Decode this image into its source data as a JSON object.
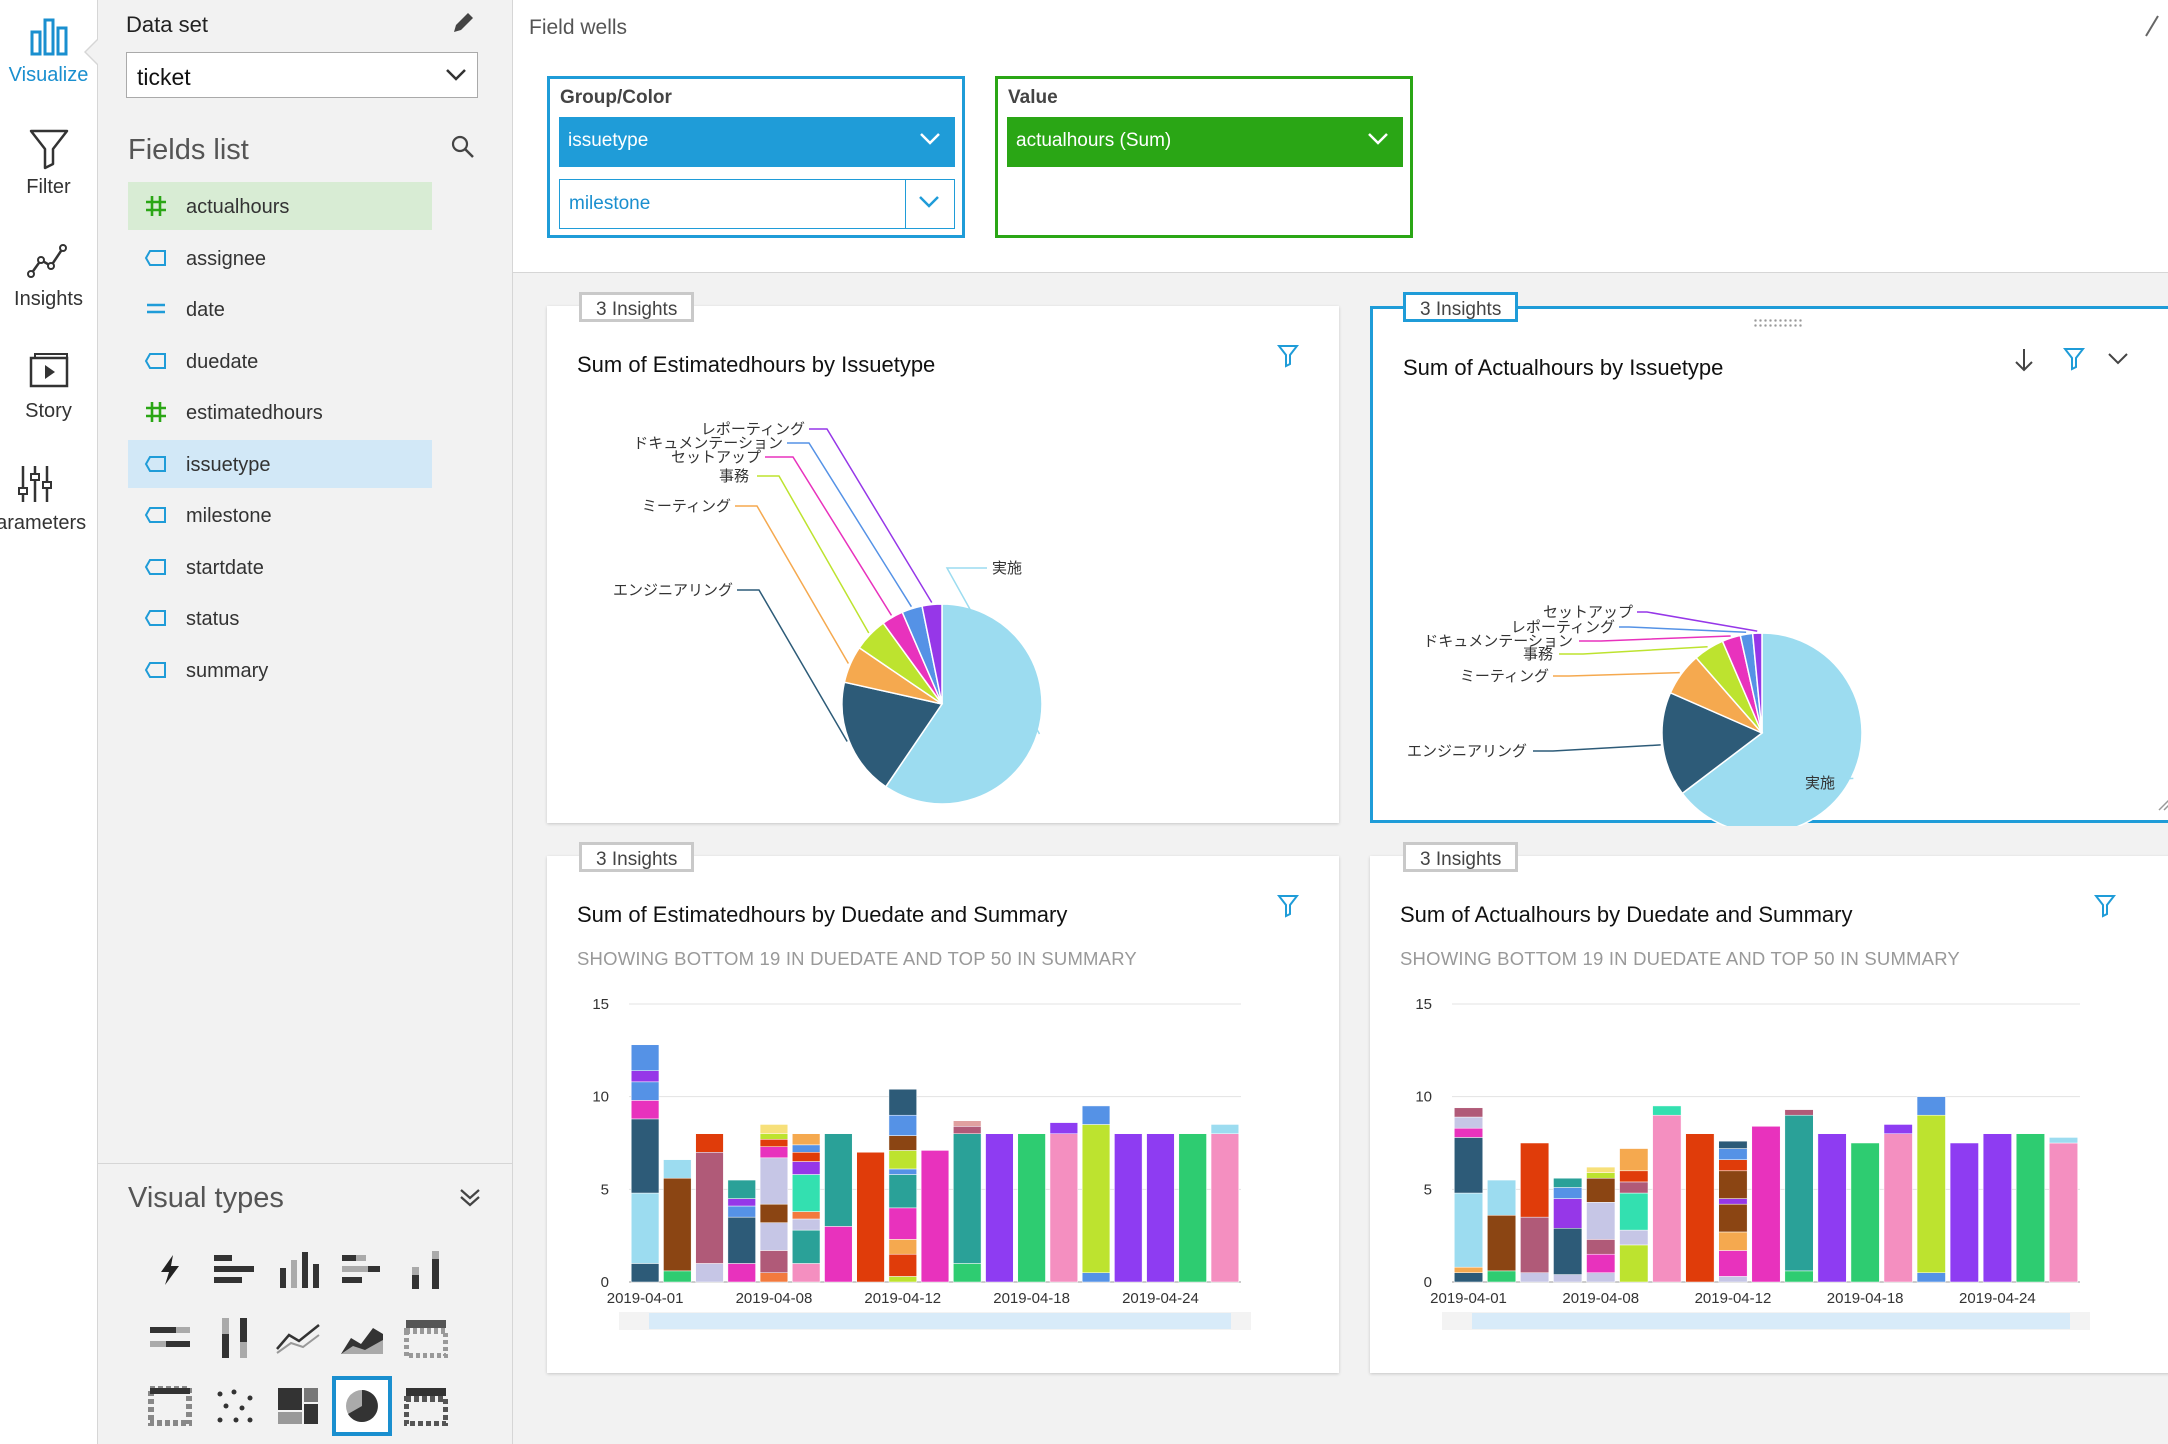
{
  "rail": {
    "items": [
      {
        "label": "Visualize",
        "icon": "bar-chart-icon"
      },
      {
        "label": "Filter",
        "icon": "funnel-icon"
      },
      {
        "label": "Insights",
        "icon": "insights-line-icon"
      },
      {
        "label": "Story",
        "icon": "story-play-icon"
      },
      {
        "label": "Parameters",
        "icon": "sliders-icon"
      }
    ]
  },
  "dataset": {
    "label": "Data set",
    "selected": "ticket"
  },
  "fields_list": {
    "title": "Fields list",
    "fields": [
      {
        "name": "actualhours",
        "type": "measure"
      },
      {
        "name": "assignee",
        "type": "dimension"
      },
      {
        "name": "date",
        "type": "date"
      },
      {
        "name": "duedate",
        "type": "dimension"
      },
      {
        "name": "estimatedhours",
        "type": "measure"
      },
      {
        "name": "issuetype",
        "type": "dimension"
      },
      {
        "name": "milestone",
        "type": "dimension"
      },
      {
        "name": "startdate",
        "type": "dimension"
      },
      {
        "name": "status",
        "type": "dimension"
      },
      {
        "name": "summary",
        "type": "dimension"
      }
    ]
  },
  "visual_types": {
    "title": "Visual types"
  },
  "field_wells": {
    "title": "Field wells",
    "group_color": {
      "label": "Group/Color",
      "fields": [
        "issuetype",
        "milestone"
      ]
    },
    "value": {
      "label": "Value",
      "fields": [
        "actualhours (Sum)"
      ]
    }
  },
  "colors": {
    "accent_blue": "#1f9cd8",
    "accent_green": "#2aa615"
  },
  "cards": [
    {
      "insights": "3 Insights",
      "title": "Sum of Estimatedhours by Issuetype"
    },
    {
      "insights": "3 Insights",
      "title": "Sum of Actualhours by Issuetype"
    },
    {
      "insights": "3 Insights",
      "title": "Sum of Estimatedhours by Duedate and Summary",
      "subtitle": "SHOWING BOTTOM 19 IN DUEDATE AND TOP 50 IN SUMMARY"
    },
    {
      "insights": "3 Insights",
      "title": "Sum of Actualhours by Duedate and Summary",
      "subtitle": "SHOWING BOTTOM 19 IN DUEDATE AND TOP 50 IN SUMMARY"
    }
  ],
  "chart_data": [
    {
      "type": "pie",
      "title": "Sum of Estimatedhours by Issuetype",
      "slices": [
        {
          "label": "実施",
          "value": 59.5,
          "color": "#9cdcf0"
        },
        {
          "label": "エンジニアリング",
          "value": 19.0,
          "color": "#2d5b78"
        },
        {
          "label": "ミーティング",
          "value": 6.0,
          "color": "#f5a94f"
        },
        {
          "label": "事務",
          "value": 5.5,
          "color": "#bde32f"
        },
        {
          "label": "セットアップ",
          "value": 3.5,
          "color": "#e832bd"
        },
        {
          "label": "ドキュメンテーション",
          "value": 3.3,
          "color": "#5592e6"
        },
        {
          "label": "レポーティング",
          "value": 3.2,
          "color": "#9637e8"
        }
      ]
    },
    {
      "type": "pie",
      "title": "Sum of Actualhours by Issuetype",
      "slices": [
        {
          "label": "実施",
          "value": 65.0,
          "color": "#9cdcf0"
        },
        {
          "label": "エンジニアリング",
          "value": 17.0,
          "color": "#2d5b78"
        },
        {
          "label": "ミーティング",
          "value": 7.0,
          "color": "#f5a94f"
        },
        {
          "label": "事務",
          "value": 5.0,
          "color": "#bde32f"
        },
        {
          "label": "ドキュメンテーション",
          "value": 3.0,
          "color": "#e832bd"
        },
        {
          "label": "レポーティング",
          "value": 2.0,
          "color": "#5592e6"
        },
        {
          "label": "セットアップ",
          "value": 1.5,
          "color": "#9637e8"
        }
      ]
    },
    {
      "type": "bar",
      "stacked": true,
      "title": "Sum of Estimatedhours by Duedate and Summary",
      "subtitle": "SHOWING BOTTOM 19 IN DUEDATE AND TOP 50 IN SUMMARY",
      "ylim": [
        0,
        15
      ],
      "yticks": [
        0,
        5,
        10,
        15
      ],
      "xtick_labels": [
        {
          "label": "2019-04-01",
          "index": 0
        },
        {
          "label": "2019-04-08",
          "index": 4
        },
        {
          "label": "2019-04-12",
          "index": 8
        },
        {
          "label": "2019-04-18",
          "index": 12
        },
        {
          "label": "2019-04-24",
          "index": 16
        }
      ],
      "stacks": [
        [
          [
            1,
            "#2d5b78"
          ],
          [
            3.8,
            "#9cdcf0"
          ],
          [
            4,
            "#2d5b78"
          ],
          [
            1,
            "#e832bd"
          ],
          [
            1,
            "#5592e6"
          ],
          [
            0.6,
            "#9637e8"
          ],
          [
            1.4,
            "#5592e6"
          ]
        ],
        [
          [
            0.6,
            "#2ecc71"
          ],
          [
            5,
            "#8b4513"
          ],
          [
            1,
            "#9cdcf0"
          ]
        ],
        [
          [
            1,
            "#c6c6e6"
          ],
          [
            6,
            "#b05a78"
          ],
          [
            1,
            "#e03c0a"
          ]
        ],
        [
          [
            1,
            "#e832bd"
          ],
          [
            2.5,
            "#2d5b78"
          ],
          [
            0.6,
            "#5592e6"
          ],
          [
            0.4,
            "#9637e8"
          ],
          [
            1,
            "#2aa198"
          ]
        ],
        [
          [
            0.5,
            "#f27a3e"
          ],
          [
            1.2,
            "#b05a78"
          ],
          [
            1.5,
            "#c6c6e6"
          ],
          [
            1,
            "#8b4513"
          ],
          [
            2.5,
            "#c6c6e6"
          ],
          [
            0.6,
            "#e832bd"
          ],
          [
            0.4,
            "#e03c0a"
          ],
          [
            0.3,
            "#bde32f"
          ],
          [
            0.5,
            "#f7e07a"
          ]
        ],
        [
          [
            1,
            "#f48fc0"
          ],
          [
            1.8,
            "#2aa198"
          ],
          [
            0.6,
            "#c6c6e6"
          ],
          [
            0.4,
            "#f27a3e"
          ],
          [
            2,
            "#33e0b0"
          ],
          [
            0.7,
            "#9637e8"
          ],
          [
            0.5,
            "#e03c0a"
          ],
          [
            0.4,
            "#5592e6"
          ],
          [
            0.6,
            "#f5a94f"
          ]
        ],
        [
          [
            3,
            "#e832bd"
          ],
          [
            5,
            "#2aa198"
          ]
        ],
        [
          [
            7,
            "#e03c0a"
          ]
        ],
        [
          [
            0.3,
            "#bde32f"
          ],
          [
            1.2,
            "#e03c0a"
          ],
          [
            0.8,
            "#f5a94f"
          ],
          [
            1.7,
            "#e832bd"
          ],
          [
            1.8,
            "#2aa198"
          ],
          [
            0.3,
            "#5592e6"
          ],
          [
            1,
            "#bde32f"
          ],
          [
            0.8,
            "#8b4513"
          ],
          [
            1.1,
            "#5592e6"
          ],
          [
            1.4,
            "#2d5b78"
          ]
        ],
        [
          [
            7.1,
            "#e832bd"
          ]
        ],
        [
          [
            1,
            "#2ecc71"
          ],
          [
            7,
            "#2aa198"
          ],
          [
            0.4,
            "#b05a78"
          ],
          [
            0.3,
            "#e0a0a0"
          ]
        ],
        [
          [
            8,
            "#8e3cf2"
          ]
        ],
        [
          [
            8,
            "#2ecc71"
          ]
        ],
        [
          [
            8,
            "#f48fc0"
          ],
          [
            0.6,
            "#8e3cf2"
          ]
        ],
        [
          [
            0.5,
            "#5592e6"
          ],
          [
            8,
            "#bde32f"
          ],
          [
            1,
            "#5592e6"
          ]
        ],
        [
          [
            8,
            "#8e3cf2"
          ]
        ],
        [
          [
            8,
            "#8e3cf2"
          ]
        ],
        [
          [
            8,
            "#2ecc71"
          ]
        ],
        [
          [
            8,
            "#f48fc0"
          ],
          [
            0.5,
            "#9cdcf0"
          ]
        ]
      ]
    },
    {
      "type": "bar",
      "stacked": true,
      "title": "Sum of Actualhours by Duedate and Summary",
      "subtitle": "SHOWING BOTTOM 19 IN DUEDATE AND TOP 50 IN SUMMARY",
      "ylim": [
        0,
        15
      ],
      "yticks": [
        0,
        5,
        10,
        15
      ],
      "xtick_labels": [
        {
          "label": "2019-04-01",
          "index": 0
        },
        {
          "label": "2019-04-08",
          "index": 4
        },
        {
          "label": "2019-04-12",
          "index": 8
        },
        {
          "label": "2019-04-18",
          "index": 12
        },
        {
          "label": "2019-04-24",
          "index": 16
        }
      ],
      "stacks": [
        [
          [
            0.5,
            "#2d5b78"
          ],
          [
            0.3,
            "#f5a94f"
          ],
          [
            4,
            "#9cdcf0"
          ],
          [
            3,
            "#2d5b78"
          ],
          [
            0.5,
            "#e832bd"
          ],
          [
            0.6,
            "#c6c6e6"
          ],
          [
            0.5,
            "#b05a78"
          ]
        ],
        [
          [
            0.6,
            "#2ecc71"
          ],
          [
            3,
            "#8b4513"
          ],
          [
            1.9,
            "#9cdcf0"
          ]
        ],
        [
          [
            0.5,
            "#c6c6e6"
          ],
          [
            3,
            "#b05a78"
          ],
          [
            4,
            "#e03c0a"
          ]
        ],
        [
          [
            0.4,
            "#c6c6e6"
          ],
          [
            2.5,
            "#2d5b78"
          ],
          [
            1.6,
            "#9637e8"
          ],
          [
            0.6,
            "#5592e6"
          ],
          [
            0.5,
            "#2aa198"
          ]
        ],
        [
          [
            0.5,
            "#c6c6e6"
          ],
          [
            1,
            "#e832bd"
          ],
          [
            0.8,
            "#b05a78"
          ],
          [
            2,
            "#c6c6e6"
          ],
          [
            1.3,
            "#8b4513"
          ],
          [
            0.3,
            "#bde32f"
          ],
          [
            0.3,
            "#f7e07a"
          ]
        ],
        [
          [
            2,
            "#bde32f"
          ],
          [
            0.8,
            "#c6c6e6"
          ],
          [
            2,
            "#33e0b0"
          ],
          [
            0.6,
            "#b05a78"
          ],
          [
            0.6,
            "#e03c0a"
          ],
          [
            1.2,
            "#f5a94f"
          ]
        ],
        [
          [
            9,
            "#f48fc0"
          ],
          [
            0.5,
            "#33e0b0"
          ]
        ],
        [
          [
            8,
            "#e03c0a"
          ]
        ],
        [
          [
            0.3,
            "#c6c6e6"
          ],
          [
            1.4,
            "#e832bd"
          ],
          [
            1,
            "#f5a94f"
          ],
          [
            1.5,
            "#8b4513"
          ],
          [
            0.3,
            "#9637e8"
          ],
          [
            1.5,
            "#8b4513"
          ],
          [
            0.6,
            "#e03c0a"
          ],
          [
            0.6,
            "#5592e6"
          ],
          [
            0.4,
            "#2d5b78"
          ]
        ],
        [
          [
            8.4,
            "#e832bd"
          ]
        ],
        [
          [
            0.6,
            "#2ecc71"
          ],
          [
            8.4,
            "#2aa198"
          ],
          [
            0.3,
            "#b05a78"
          ]
        ],
        [
          [
            8,
            "#8e3cf2"
          ]
        ],
        [
          [
            7.5,
            "#2ecc71"
          ]
        ],
        [
          [
            8,
            "#f48fc0"
          ],
          [
            0.5,
            "#8e3cf2"
          ]
        ],
        [
          [
            0.5,
            "#5592e6"
          ],
          [
            8.5,
            "#bde32f"
          ],
          [
            1,
            "#5592e6"
          ]
        ],
        [
          [
            7.5,
            "#8e3cf2"
          ]
        ],
        [
          [
            8,
            "#8e3cf2"
          ]
        ],
        [
          [
            8,
            "#2ecc71"
          ]
        ],
        [
          [
            7.5,
            "#f48fc0"
          ],
          [
            0.3,
            "#9cdcf0"
          ]
        ]
      ]
    }
  ]
}
